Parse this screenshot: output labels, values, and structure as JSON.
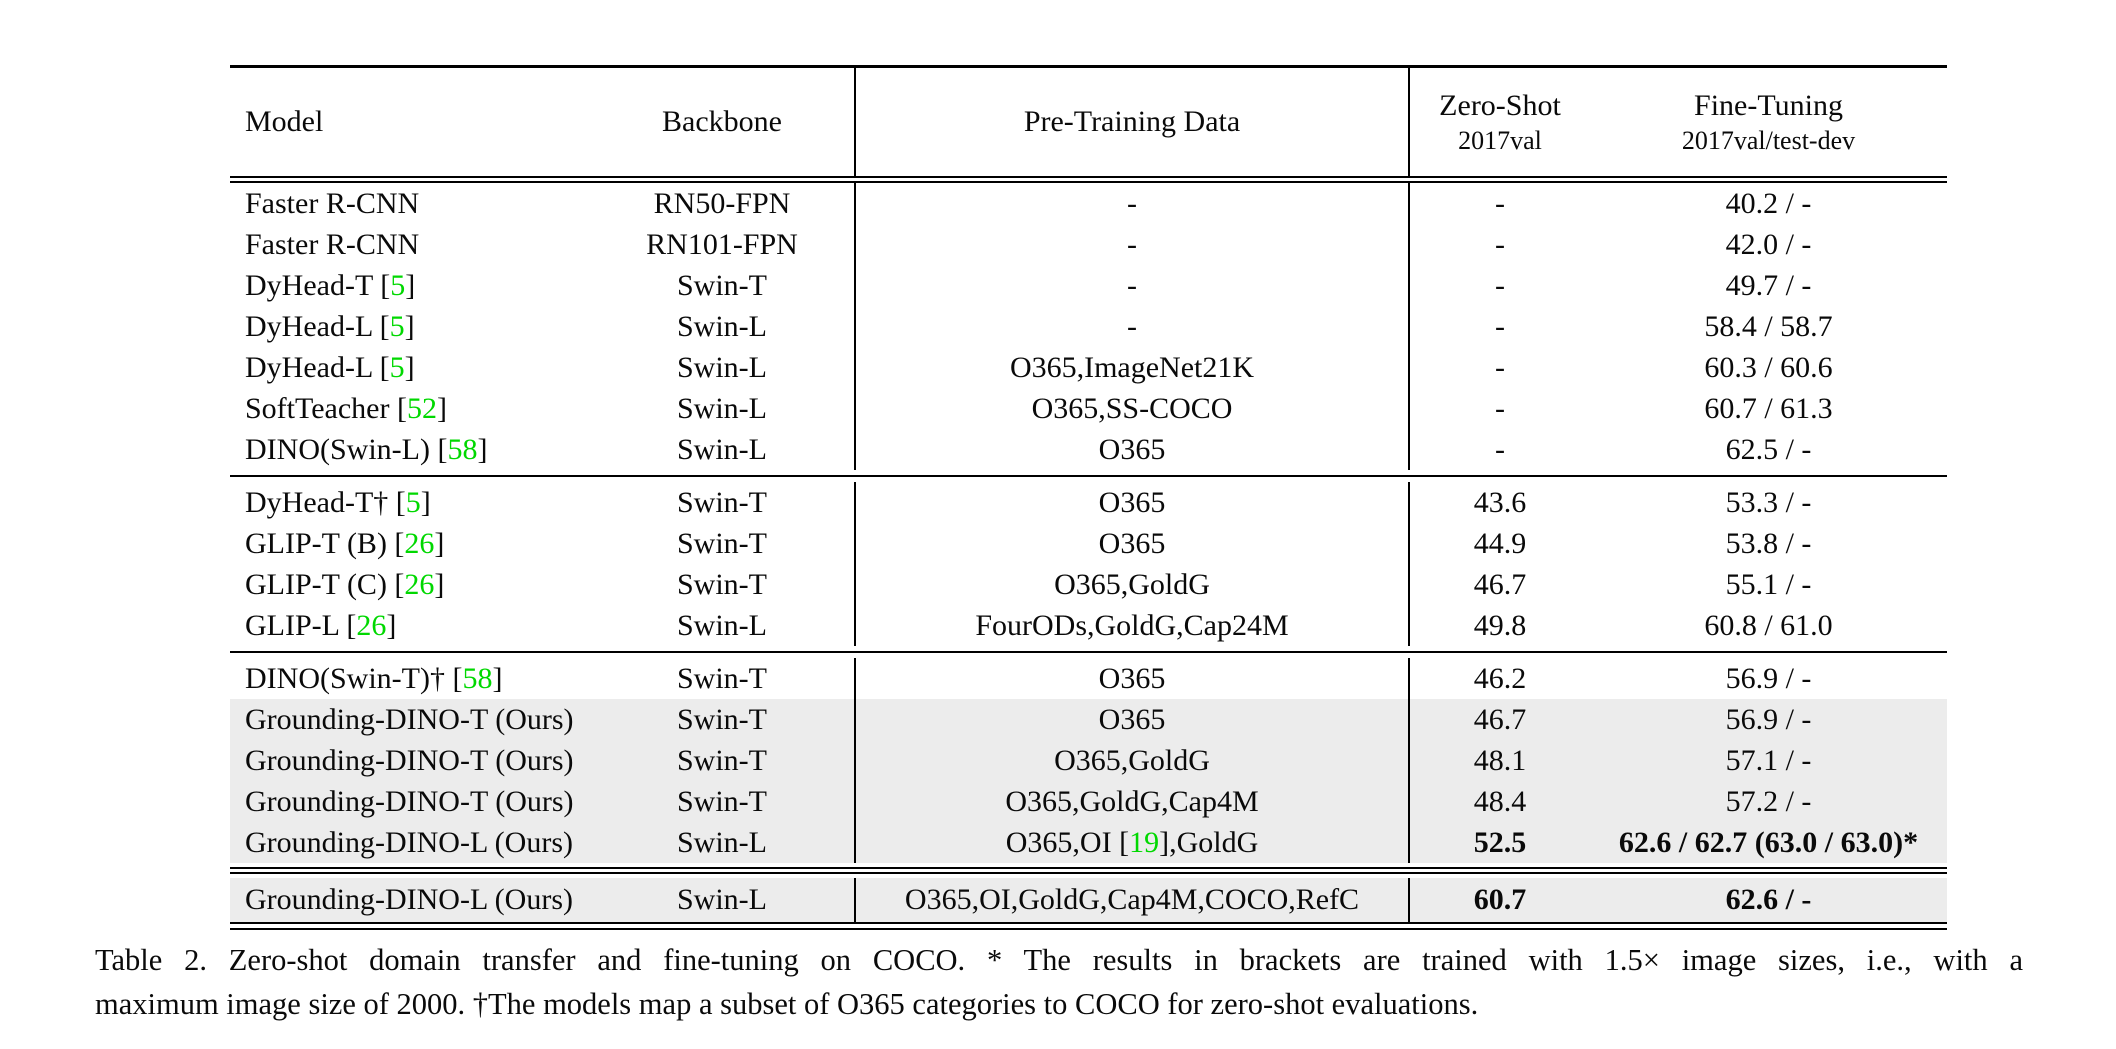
{
  "colors": {
    "citation_green": "#00d800",
    "highlight_gray": "#ececec",
    "text_black": "#0a0a0a"
  },
  "header": {
    "model": "Model",
    "backbone": "Backbone",
    "pretraining": "Pre-Training Data",
    "zeroshot_title": "Zero-Shot",
    "zeroshot_sub": "2017val",
    "finetuning_title": "Fine-Tuning",
    "finetuning_sub": "2017val/test-dev"
  },
  "groups": [
    {
      "rows": [
        {
          "model_pre": "Faster R-CNN",
          "model_cite": "",
          "model_post": "",
          "backbone": "RN50-FPN",
          "pt_pre": "-",
          "pt_cite": "",
          "pt_post": "",
          "zs": "-",
          "ft": "40.2 / -"
        },
        {
          "model_pre": "Faster R-CNN",
          "model_cite": "",
          "model_post": "",
          "backbone": "RN101-FPN",
          "pt_pre": "-",
          "pt_cite": "",
          "pt_post": "",
          "zs": "-",
          "ft": "42.0 / -"
        },
        {
          "model_pre": "DyHead-T [",
          "model_cite": "5",
          "model_post": "]",
          "backbone": "Swin-T",
          "pt_pre": "-",
          "pt_cite": "",
          "pt_post": "",
          "zs": "-",
          "ft": "49.7 / -"
        },
        {
          "model_pre": "DyHead-L [",
          "model_cite": "5",
          "model_post": "]",
          "backbone": "Swin-L",
          "pt_pre": "-",
          "pt_cite": "",
          "pt_post": "",
          "zs": "-",
          "ft": "58.4 / 58.7"
        },
        {
          "model_pre": "DyHead-L [",
          "model_cite": "5",
          "model_post": "]",
          "backbone": "Swin-L",
          "pt_pre": "O365,ImageNet21K",
          "pt_cite": "",
          "pt_post": "",
          "zs": "-",
          "ft": "60.3 / 60.6"
        },
        {
          "model_pre": "SoftTeacher [",
          "model_cite": "52",
          "model_post": "]",
          "backbone": "Swin-L",
          "pt_pre": "O365,SS-COCO",
          "pt_cite": "",
          "pt_post": "",
          "zs": "-",
          "ft": "60.7 / 61.3"
        },
        {
          "model_pre": "DINO(Swin-L) [",
          "model_cite": "58",
          "model_post": "]",
          "backbone": "Swin-L",
          "pt_pre": "O365",
          "pt_cite": "",
          "pt_post": "",
          "zs": "-",
          "ft": "62.5 / -"
        }
      ]
    },
    {
      "rows": [
        {
          "model_pre": "DyHead-T† [",
          "model_cite": "5",
          "model_post": "]",
          "backbone": "Swin-T",
          "pt_pre": "O365",
          "pt_cite": "",
          "pt_post": "",
          "zs": "43.6",
          "ft": "53.3 / -"
        },
        {
          "model_pre": "GLIP-T (B) [",
          "model_cite": "26",
          "model_post": "]",
          "backbone": "Swin-T",
          "pt_pre": "O365",
          "pt_cite": "",
          "pt_post": "",
          "zs": "44.9",
          "ft": "53.8 / -"
        },
        {
          "model_pre": "GLIP-T (C) [",
          "model_cite": "26",
          "model_post": "]",
          "backbone": "Swin-T",
          "pt_pre": "O365,GoldG",
          "pt_cite": "",
          "pt_post": "",
          "zs": "46.7",
          "ft": "55.1 / -"
        },
        {
          "model_pre": "GLIP-L [",
          "model_cite": "26",
          "model_post": "]",
          "backbone": "Swin-L",
          "pt_pre": "FourODs,GoldG,Cap24M",
          "pt_cite": "",
          "pt_post": "",
          "zs": "49.8",
          "ft": "60.8 / 61.0"
        }
      ]
    },
    {
      "rows": [
        {
          "model_pre": "DINO(Swin-T)† [",
          "model_cite": "58",
          "model_post": "]",
          "backbone": "Swin-T",
          "pt_pre": "O365",
          "pt_cite": "",
          "pt_post": "",
          "zs": "46.2",
          "ft": "56.9 / -"
        },
        {
          "model_pre": "Grounding-DINO-T (Ours)",
          "model_cite": "",
          "model_post": "",
          "backbone": "Swin-T",
          "pt_pre": "O365",
          "pt_cite": "",
          "pt_post": "",
          "zs": "46.7",
          "ft": "56.9 / -"
        },
        {
          "model_pre": "Grounding-DINO-T (Ours)",
          "model_cite": "",
          "model_post": "",
          "backbone": "Swin-T",
          "pt_pre": "O365,GoldG",
          "pt_cite": "",
          "pt_post": "",
          "zs": "48.1",
          "ft": "57.1 / -"
        },
        {
          "model_pre": "Grounding-DINO-T (Ours)",
          "model_cite": "",
          "model_post": "",
          "backbone": "Swin-T",
          "pt_pre": "O365,GoldG,Cap4M",
          "pt_cite": "",
          "pt_post": "",
          "zs": "48.4",
          "ft": "57.2 / -"
        },
        {
          "model_pre": "Grounding-DINO-L (Ours)",
          "model_cite": "",
          "model_post": "",
          "backbone": "Swin-L",
          "pt_pre": "O365,OI [",
          "pt_cite": "19",
          "pt_post": "],GoldG",
          "zs": "52.5",
          "ft": "62.6 / 62.7 (63.0 / 63.0)*"
        }
      ]
    },
    {
      "rows": [
        {
          "model_pre": "Grounding-DINO-L (Ours)",
          "model_cite": "",
          "model_post": "",
          "backbone": "Swin-L",
          "pt_pre": "O365,OI,GoldG,Cap4M,COCO,RefC",
          "pt_cite": "",
          "pt_post": "",
          "zs": "60.7",
          "ft": "62.6 / -"
        }
      ]
    }
  ],
  "caption": {
    "line1": "Table 2. Zero-shot domain transfer and fine-tuning on COCO. * The results in brackets are trained with 1.5× image sizes, i.e., with a",
    "line2": "maximum image size of 2000. †The models map a subset of O365 categories to COCO for zero-shot evaluations."
  }
}
